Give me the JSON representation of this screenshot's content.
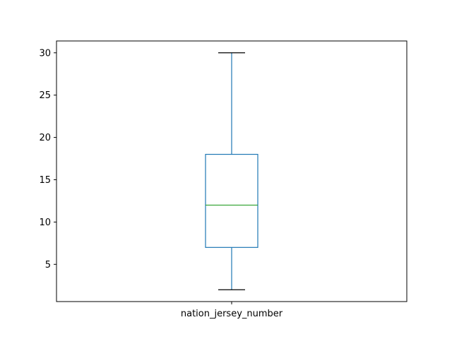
{
  "chart_data": {
    "type": "box",
    "categories": [
      "nation_jersey_number"
    ],
    "boxes": [
      {
        "whisker_low": 2,
        "q1": 7,
        "median": 12,
        "q3": 18,
        "whisker_high": 30
      }
    ],
    "ylim": [
      0.6,
      31.4
    ],
    "yticks": [
      5,
      10,
      15,
      20,
      25,
      30
    ],
    "title": "",
    "xlabel": "",
    "ylabel": "",
    "grid": false,
    "colors": {
      "box": "#1f77b4",
      "median": "#2ca02c",
      "axes": "#000000"
    }
  }
}
